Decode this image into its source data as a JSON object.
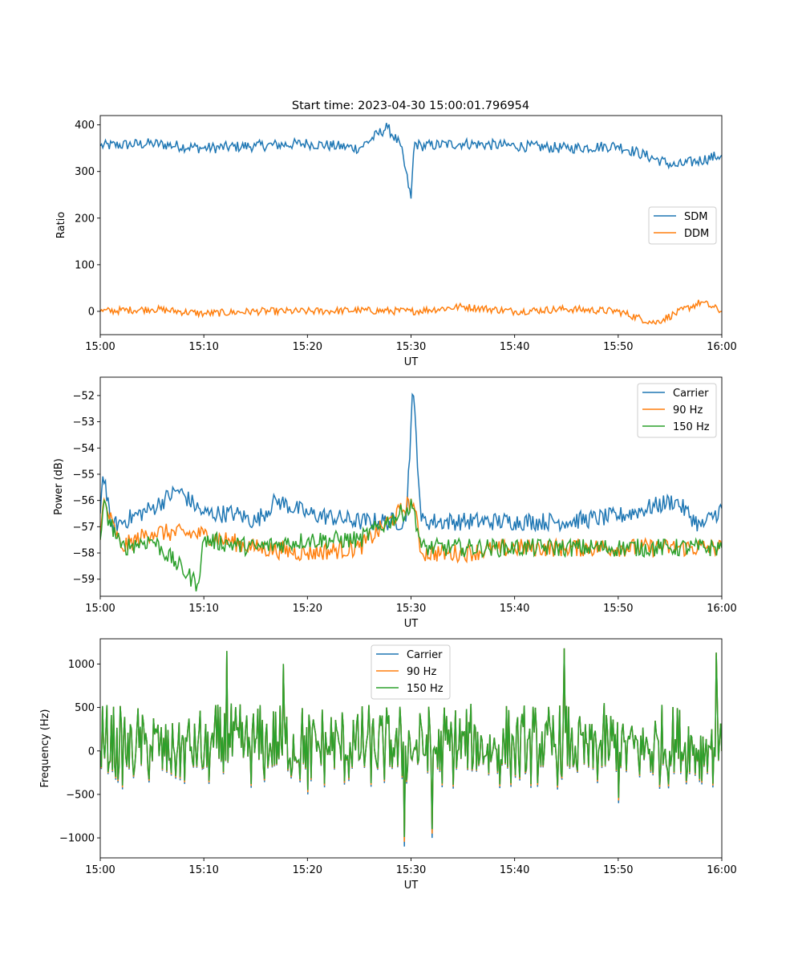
{
  "figure_title": "Start time: 2023-04-30 15:00:01.796954",
  "chart_data": [
    {
      "type": "line",
      "title": "Start time: 2023-04-30 15:00:01.796954",
      "xlabel": "UT",
      "ylabel": "Ratio",
      "xlim": [
        "15:00",
        "16:00"
      ],
      "xticks": [
        "15:00",
        "15:10",
        "15:20",
        "15:30",
        "15:40",
        "15:50",
        "16:00"
      ],
      "ylim": [
        -50,
        420
      ],
      "yticks": [
        "0",
        "100",
        "200",
        "300",
        "400"
      ],
      "grid": false,
      "legend": "center-right",
      "series": [
        {
          "name": "SDM",
          "color": "#1f77b4",
          "x_minutes": [
            0,
            5,
            10,
            15,
            20,
            25,
            27.7,
            29,
            30,
            30.3,
            31,
            35,
            40,
            45,
            50,
            55.5,
            60
          ],
          "values": [
            355,
            360,
            350,
            355,
            360,
            350,
            395,
            355,
            242,
            360,
            355,
            360,
            355,
            350,
            355,
            312,
            335
          ]
        },
        {
          "name": "DDM",
          "color": "#ff7f0e",
          "x_minutes": [
            0,
            5,
            10,
            15,
            20,
            25,
            30,
            35,
            40,
            45,
            50,
            53.5,
            58,
            60
          ],
          "values": [
            0,
            5,
            -5,
            0,
            0,
            2,
            0,
            10,
            0,
            5,
            0,
            -25,
            20,
            0
          ]
        }
      ]
    },
    {
      "type": "line",
      "xlabel": "UT",
      "ylabel": "Power (dB)",
      "xlim": [
        "15:00",
        "16:00"
      ],
      "xticks": [
        "15:00",
        "15:10",
        "15:20",
        "15:30",
        "15:40",
        "15:50",
        "16:00"
      ],
      "ylim": [
        -59.65,
        -51.3
      ],
      "yticks": [
        "−52",
        "−53",
        "−54",
        "−55",
        "−56",
        "−57",
        "−58",
        "−59"
      ],
      "grid": false,
      "legend": "top-right",
      "series": [
        {
          "name": "Carrier",
          "color": "#1f77b4",
          "x_minutes": [
            0,
            0.3,
            1,
            5,
            7.5,
            10,
            13,
            15,
            17,
            20,
            25,
            29.5,
            30.2,
            31,
            35,
            40,
            45,
            50,
            55.5,
            58,
            60
          ],
          "values": [
            -56.5,
            -54.8,
            -57,
            -56.3,
            -55.6,
            -56.5,
            -56.5,
            -56.8,
            -56,
            -56.5,
            -56.8,
            -56.8,
            -51.7,
            -56.8,
            -56.8,
            -56.8,
            -56.8,
            -56.6,
            -56,
            -57,
            -56.3
          ]
        },
        {
          "name": "90 Hz",
          "color": "#ff7f0e",
          "x_minutes": [
            0,
            0.3,
            2,
            5,
            10,
            15,
            20,
            25,
            30.2,
            31,
            35,
            40,
            45,
            50,
            55,
            60
          ],
          "values": [
            -57.5,
            -56,
            -57.8,
            -57.2,
            -57.3,
            -57.8,
            -58,
            -57.8,
            -56,
            -58,
            -58,
            -57.8,
            -57.8,
            -57.8,
            -57.8,
            -57.8
          ]
        },
        {
          "name": "150 Hz",
          "color": "#2ca02c",
          "x_minutes": [
            0,
            0.3,
            2,
            5,
            9.4,
            10,
            15,
            20,
            25,
            30.2,
            31,
            35,
            40,
            45,
            50,
            55,
            60
          ],
          "values": [
            -57.5,
            -56.2,
            -57.8,
            -57.5,
            -59.2,
            -57.5,
            -57.8,
            -57.5,
            -57.5,
            -56.2,
            -57.8,
            -57.8,
            -57.8,
            -57.8,
            -57.8,
            -57.8,
            -57.8
          ]
        }
      ]
    },
    {
      "type": "line",
      "xlabel": "UT",
      "ylabel": "Frequency (Hz)",
      "xlim": [
        "15:00",
        "16:00"
      ],
      "xticks": [
        "15:00",
        "15:10",
        "15:20",
        "15:30",
        "15:40",
        "15:50",
        "16:00"
      ],
      "ylim": [
        -1230,
        1290
      ],
      "yticks": [
        "1000",
        "500",
        "0",
        "−500",
        "−1000"
      ],
      "grid": false,
      "legend": "top-center",
      "series": [
        {
          "name": "Carrier",
          "color": "#1f77b4",
          "x_minutes": [
            0,
            10,
            12.2,
            17.7,
            20,
            29.4,
            32,
            40,
            44.8,
            50,
            55,
            59.5,
            60
          ],
          "values": [
            0,
            -200,
            1150,
            1000,
            -500,
            -1100,
            -1000,
            0,
            1180,
            -600,
            0,
            1130,
            0
          ]
        },
        {
          "name": "90 Hz",
          "color": "#ff7f0e",
          "x_minutes": [
            0,
            10,
            12.2,
            17.7,
            20,
            29.4,
            32,
            40,
            44.8,
            50,
            55,
            59.5,
            60
          ],
          "values": [
            0,
            -200,
            1150,
            1000,
            -500,
            -1050,
            -950,
            0,
            1180,
            -600,
            0,
            1130,
            0
          ]
        },
        {
          "name": "150 Hz",
          "color": "#2ca02c",
          "x_minutes": [
            0,
            10,
            12.2,
            17.7,
            20,
            29.4,
            32,
            40,
            44.8,
            50,
            55,
            59.5,
            60
          ],
          "values": [
            0,
            -200,
            1150,
            1000,
            -500,
            -1000,
            -900,
            0,
            1180,
            -600,
            0,
            1130,
            0
          ]
        }
      ]
    }
  ]
}
